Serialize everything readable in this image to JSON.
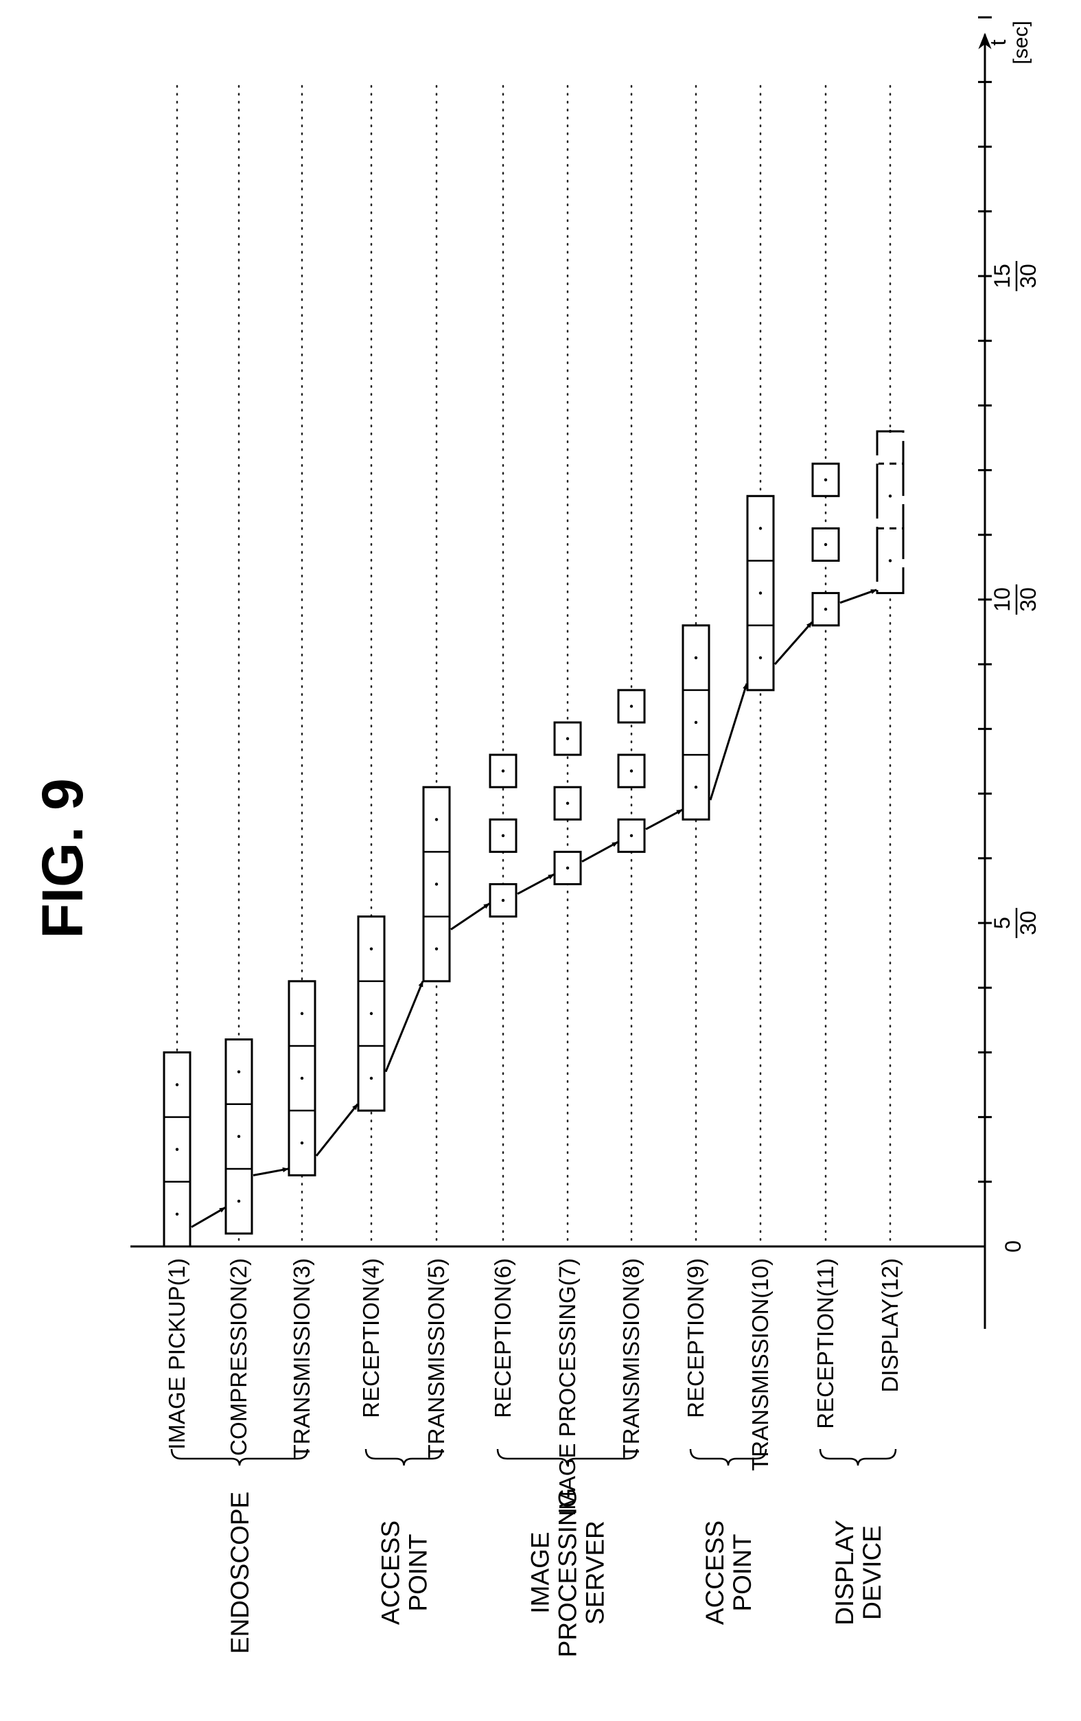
{
  "figure": {
    "title": "FIG. 9",
    "axis": {
      "var_label": "t",
      "unit_label": "[sec]",
      "tick_labels": [
        {
          "value": 0,
          "whole": "0",
          "num": "",
          "den": ""
        },
        {
          "value": 5,
          "whole": "5",
          "num": "",
          "den": "30"
        },
        {
          "value": 10,
          "whole": "10",
          "num": "",
          "den": "30"
        },
        {
          "value": 15,
          "whole": "15",
          "num": "",
          "den": "30"
        }
      ],
      "minor_tick_count": 19
    },
    "stages": [
      {
        "label": "IMAGE PICKUP(1)"
      },
      {
        "label": "COMPRESSION(2)"
      },
      {
        "label": "TRANSMISSION(3)"
      },
      {
        "label": "RECEPTION(4)"
      },
      {
        "label": "TRANSMISSION(5)"
      },
      {
        "label": "RECEPTION(6)"
      },
      {
        "label": "IMAGE PROCESSING(7)"
      },
      {
        "label": "TRANSMISSION(8)"
      },
      {
        "label": "RECEPTION(9)"
      },
      {
        "label": "TRANSMISSION(10)"
      },
      {
        "label": "RECEPTION(11)"
      },
      {
        "label": "DISPLAY(12)"
      }
    ],
    "groups": [
      {
        "label_lines": [
          "ENDOSCOPE"
        ]
      },
      {
        "label_lines": [
          "ACCESS",
          "POINT"
        ]
      },
      {
        "label_lines": [
          "IMAGE",
          "PROCESSING",
          "SERVER"
        ]
      },
      {
        "label_lines": [
          "ACCESS",
          "POINT"
        ]
      },
      {
        "label_lines": [
          "DISPLAY",
          "DEVICE"
        ]
      }
    ]
  }
}
